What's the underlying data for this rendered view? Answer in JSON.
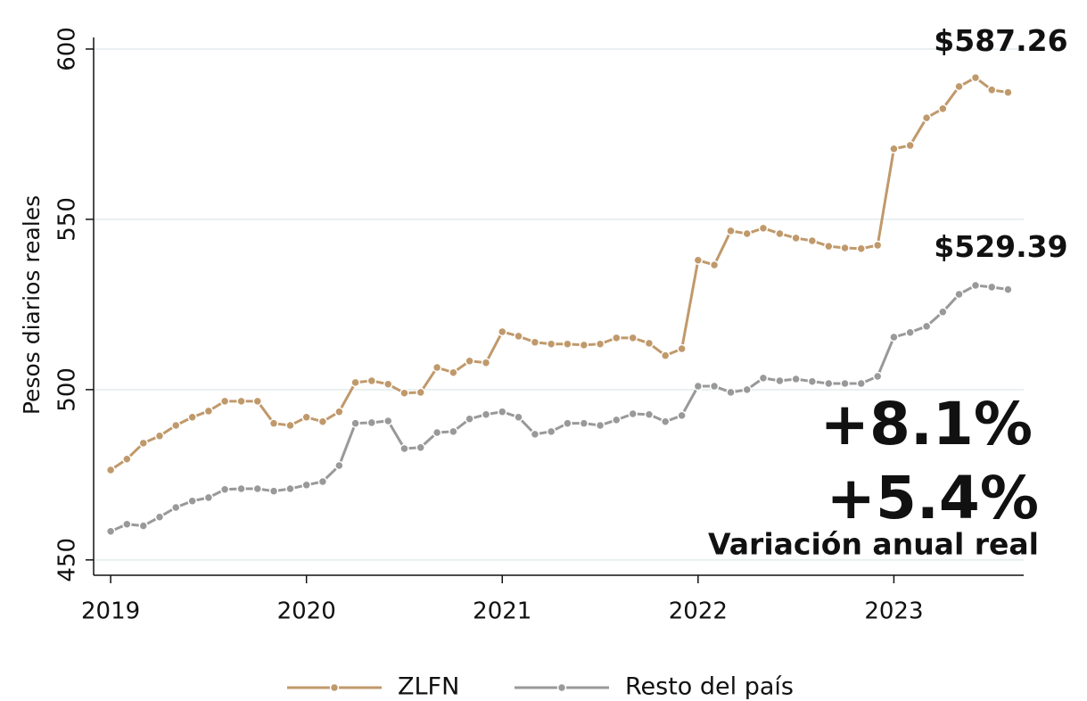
{
  "chart_data": {
    "type": "line",
    "y_label": "Pesos diarios reales",
    "x": [
      2019,
      2019.083,
      2019.167,
      2019.25,
      2019.333,
      2019.417,
      2019.5,
      2019.583,
      2019.667,
      2019.75,
      2019.833,
      2019.917,
      2020,
      2020.083,
      2020.167,
      2020.25,
      2020.333,
      2020.417,
      2020.5,
      2020.583,
      2020.667,
      2020.75,
      2020.833,
      2020.917,
      2021,
      2021.083,
      2021.167,
      2021.25,
      2021.333,
      2021.417,
      2021.5,
      2021.583,
      2021.667,
      2021.75,
      2021.833,
      2021.917,
      2022,
      2022.083,
      2022.167,
      2022.25,
      2022.333,
      2022.417,
      2022.5,
      2022.583,
      2022.667,
      2022.75,
      2022.833,
      2022.917,
      2023,
      2023.083,
      2023.167,
      2023.25,
      2023.333,
      2023.417,
      2023.5,
      2023.583
    ],
    "series": [
      {
        "name": "ZLFN",
        "color": "#c0996b",
        "end_label": "$587.26",
        "values": [
          476.4,
          479.6,
          484.3,
          486.4,
          489.5,
          491.9,
          493.7,
          496.6,
          496.6,
          496.6,
          490.1,
          489.5,
          491.9,
          490.6,
          493.5,
          502.1,
          502.6,
          501.6,
          499.0,
          499.2,
          506.5,
          505.0,
          508.4,
          507.9,
          517.0,
          515.7,
          513.9,
          513.4,
          513.4,
          513.1,
          513.4,
          515.2,
          515.2,
          513.6,
          510.0,
          512.0,
          538.0,
          536.6,
          546.6,
          545.8,
          547.4,
          545.8,
          544.5,
          543.7,
          542.1,
          541.6,
          541.4,
          542.4,
          570.7,
          571.7,
          579.8,
          582.5,
          589.0,
          591.6,
          588.0,
          587.26
        ]
      },
      {
        "name": "Resto del país",
        "color": "#999999",
        "end_label": "$529.39",
        "values": [
          458.4,
          460.5,
          460.0,
          462.6,
          465.4,
          467.3,
          468.3,
          470.7,
          470.9,
          470.9,
          470.2,
          470.9,
          472.0,
          473.0,
          477.7,
          490.1,
          490.3,
          490.8,
          482.7,
          483.0,
          487.4,
          487.7,
          491.4,
          492.7,
          493.5,
          491.9,
          486.9,
          487.7,
          490.1,
          490.1,
          489.5,
          491.1,
          492.9,
          492.7,
          490.6,
          492.4,
          501.0,
          501.0,
          499.2,
          500.0,
          503.4,
          502.6,
          503.1,
          502.4,
          501.8,
          501.8,
          501.8,
          503.9,
          515.4,
          516.8,
          518.6,
          522.8,
          528.0,
          530.6,
          530.1,
          529.39
        ]
      }
    ],
    "xlim": [
      2018.913,
      2023.663
    ],
    "xticks": [
      2019,
      2020,
      2021,
      2022,
      2023
    ],
    "ylim": [
      445.5,
      603.4
    ],
    "yticks": [
      450,
      500,
      550,
      600
    ],
    "grid": true,
    "grid_color": "#e3ecee",
    "legend": "bottom",
    "annotations": [
      {
        "text": "+8.1%",
        "color": "#c0996b"
      },
      {
        "text": "+5.4%",
        "color": "#999999"
      },
      {
        "text": "Variación anual real",
        "color": "#111111"
      }
    ]
  }
}
